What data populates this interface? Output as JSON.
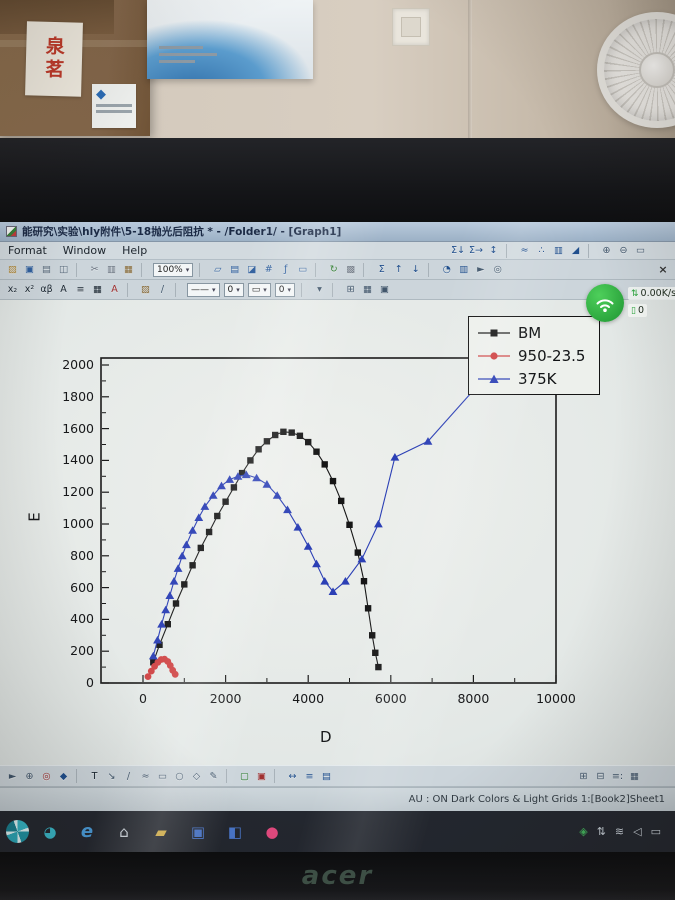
{
  "scene": {
    "box_label_text": "泉茗",
    "laptop_brand": "acer"
  },
  "window": {
    "title": "能研究\\实验\\hly附件\\5-18抛光后阻抗 * - /Folder1/ - [Graph1]",
    "menus": [
      "Format",
      "Window",
      "Help"
    ],
    "close_glyph": "×"
  },
  "net_widget": {
    "speed": "0.00K/s",
    "count": "0"
  },
  "statusbar": {
    "text": "AU : ON   Dark Colors & Light Grids   1:[Book2]Sheet1"
  },
  "toolbars": {
    "menu_row_icons": [
      {
        "type": "btn",
        "name": "stats-column-icon",
        "glyph": "Σ↓",
        "color": "#1f4e8c"
      },
      {
        "type": "btn",
        "name": "stats-row-icon",
        "glyph": "Σ→",
        "color": "#1f4e8c"
      },
      {
        "type": "btn",
        "name": "sort-icon",
        "glyph": "↕",
        "color": "#1f4e8c"
      },
      {
        "type": "sep"
      },
      {
        "type": "btn",
        "name": "line-plot-icon",
        "glyph": "≈",
        "color": "#1f4e8c"
      },
      {
        "type": "btn",
        "name": "scatter-plot-icon",
        "glyph": "∴",
        "color": "#1f4e8c"
      },
      {
        "type": "btn",
        "name": "column-plot-icon",
        "glyph": "▥",
        "color": "#1f4e8c"
      },
      {
        "type": "btn",
        "name": "area-plot-icon",
        "glyph": "◢",
        "color": "#1f4e8c"
      },
      {
        "type": "sep"
      },
      {
        "type": "btn",
        "name": "zoom-in-icon",
        "glyph": "⊕",
        "color": "#41566b"
      },
      {
        "type": "btn",
        "name": "zoom-out-icon",
        "glyph": "⊖",
        "color": "#41566b"
      },
      {
        "type": "btn",
        "name": "full-page-icon",
        "glyph": "▭",
        "color": "#41566b"
      }
    ],
    "row1": [
      {
        "type": "btn",
        "name": "open-project-icon",
        "glyph": "▨",
        "color": "#b08a3e"
      },
      {
        "type": "btn",
        "name": "save-project-icon",
        "glyph": "▣",
        "color": "#2f5f9e"
      },
      {
        "type": "btn",
        "name": "print-icon",
        "glyph": "▤",
        "color": "#5a6b7c"
      },
      {
        "type": "btn",
        "name": "print-preview-icon",
        "glyph": "◫",
        "color": "#5a6b7c"
      },
      {
        "type": "sep"
      },
      {
        "type": "btn",
        "name": "cut-icon",
        "glyph": "✂",
        "color": "#6b7480"
      },
      {
        "type": "btn",
        "name": "copy-icon",
        "glyph": "▥",
        "color": "#6b7480"
      },
      {
        "type": "btn",
        "name": "paste-icon",
        "glyph": "▦",
        "color": "#8a6d3b"
      },
      {
        "type": "sep"
      },
      {
        "type": "dd",
        "name": "zoom-dropdown",
        "value": "100%"
      },
      {
        "type": "sep"
      },
      {
        "type": "btn",
        "name": "new-project-icon",
        "glyph": "▱",
        "color": "#2f5f9e"
      },
      {
        "type": "btn",
        "name": "new-worksheet-icon",
        "glyph": "▤",
        "color": "#2f5f9e"
      },
      {
        "type": "btn",
        "name": "new-graph-icon",
        "glyph": "◪",
        "color": "#2f5f9e"
      },
      {
        "type": "btn",
        "name": "new-matrix-icon",
        "glyph": "#",
        "color": "#2f5f9e"
      },
      {
        "type": "btn",
        "name": "new-function-icon",
        "glyph": "ƒ",
        "color": "#2f5f9e"
      },
      {
        "type": "btn",
        "name": "new-layout-icon",
        "glyph": "▭",
        "color": "#2f5f9e"
      },
      {
        "type": "sep"
      },
      {
        "type": "btn",
        "name": "refresh-icon",
        "glyph": "↻",
        "color": "#2a7a2a"
      },
      {
        "type": "btn",
        "name": "duplicate-icon",
        "glyph": "▩",
        "color": "#6b7480"
      },
      {
        "type": "sep"
      },
      {
        "type": "btn",
        "name": "sum-icon",
        "glyph": "Σ",
        "color": "#1f4e8c"
      },
      {
        "type": "btn",
        "name": "sort-ascending-icon",
        "glyph": "↑",
        "color": "#1f4e8c"
      },
      {
        "type": "btn",
        "name": "sort-descending-icon",
        "glyph": "↓",
        "color": "#1f4e8c"
      },
      {
        "type": "sep"
      },
      {
        "type": "btn",
        "name": "pie-chart-icon",
        "glyph": "◔",
        "color": "#1f4e8c"
      },
      {
        "type": "btn",
        "name": "bar-chart-icon",
        "glyph": "▥",
        "color": "#1f4e8c"
      },
      {
        "type": "btn",
        "name": "pointer-icon",
        "glyph": "►",
        "color": "#41566b"
      },
      {
        "type": "btn",
        "name": "magnifier-icon",
        "glyph": "◎",
        "color": "#41566b"
      }
    ],
    "row2": [
      {
        "type": "btn",
        "name": "subscript-button",
        "glyph": "x₂",
        "color": "#1c2833"
      },
      {
        "type": "btn",
        "name": "superscript-button",
        "glyph": "x²",
        "color": "#1c2833"
      },
      {
        "type": "btn",
        "name": "greek-button",
        "glyph": "αβ",
        "color": "#1c2833"
      },
      {
        "type": "btn",
        "name": "bold-button",
        "glyph": "A",
        "color": "#1c2833"
      },
      {
        "type": "btn",
        "name": "align-button",
        "glyph": "≡",
        "color": "#1c2833"
      },
      {
        "type": "btn",
        "name": "pattern-button",
        "glyph": "▦",
        "color": "#1c2833"
      },
      {
        "type": "btn",
        "name": "font-color-button",
        "glyph": "A",
        "color": "#a03030"
      },
      {
        "type": "sep"
      },
      {
        "type": "btn",
        "name": "fill-color-icon",
        "glyph": "▨",
        "color": "#8a6d3b"
      },
      {
        "type": "btn",
        "name": "draw-line-icon",
        "glyph": "/",
        "color": "#41566b"
      },
      {
        "type": "sep"
      },
      {
        "type": "dd",
        "name": "line-style-dropdown",
        "value": "——"
      },
      {
        "type": "dd",
        "name": "line-width-dropdown",
        "value": "0"
      },
      {
        "type": "dd",
        "name": "symbol-style-dropdown",
        "value": "▭"
      },
      {
        "type": "dd",
        "name": "symbol-size-dropdown",
        "value": "0"
      },
      {
        "type": "sep"
      },
      {
        "type": "btn",
        "name": "arrow-style-icon",
        "glyph": "▾",
        "color": "#41566b"
      },
      {
        "type": "sep"
      },
      {
        "type": "btn",
        "name": "grid-icon",
        "glyph": "⊞",
        "color": "#41566b"
      },
      {
        "type": "btn",
        "name": "worksheet-icon",
        "glyph": "▦",
        "color": "#41566b"
      },
      {
        "type": "btn",
        "name": "layer-icon",
        "glyph": "▣",
        "color": "#41566b"
      }
    ],
    "bottom": [
      {
        "type": "btn",
        "name": "pointer-tool-icon",
        "glyph": "►",
        "color": "#41566b"
      },
      {
        "type": "btn",
        "name": "zoom-tool-icon",
        "glyph": "⊕",
        "color": "#41566b"
      },
      {
        "type": "btn",
        "name": "data-reader-icon",
        "glyph": "◎",
        "color": "#a03030"
      },
      {
        "type": "btn",
        "name": "data-selector-icon",
        "glyph": "◆",
        "color": "#1f4e8c"
      },
      {
        "type": "sep"
      },
      {
        "type": "btn",
        "name": "text-tool-icon",
        "glyph": "T",
        "color": "#1c2833"
      },
      {
        "type": "btn",
        "name": "arrow-tool-icon",
        "glyph": "↘",
        "color": "#41566b"
      },
      {
        "type": "btn",
        "name": "line-tool-icon",
        "glyph": "/",
        "color": "#41566b"
      },
      {
        "type": "btn",
        "name": "curve-tool-icon",
        "glyph": "≈",
        "color": "#41566b"
      },
      {
        "type": "btn",
        "name": "rectangle-tool-icon",
        "glyph": "▭",
        "color": "#41566b"
      },
      {
        "type": "btn",
        "name": "circle-tool-icon",
        "glyph": "○",
        "color": "#41566b"
      },
      {
        "type": "btn",
        "name": "polygon-tool-icon",
        "glyph": "◇",
        "color": "#41566b"
      },
      {
        "type": "btn",
        "name": "freehand-tool-icon",
        "glyph": "✎",
        "color": "#41566b"
      },
      {
        "type": "sep"
      },
      {
        "type": "btn",
        "name": "mask-tool-icon",
        "glyph": "▢",
        "color": "#2a7a2a"
      },
      {
        "type": "btn",
        "name": "unmask-tool-icon",
        "glyph": "▣",
        "color": "#a03030"
      },
      {
        "type": "sep"
      },
      {
        "type": "btn",
        "name": "rescale-tool-icon",
        "glyph": "↔",
        "color": "#1f4e8c"
      },
      {
        "type": "btn",
        "name": "legend-tool-icon",
        "glyph": "≡",
        "color": "#1f4e8c"
      },
      {
        "type": "btn",
        "name": "date-stamp-icon",
        "glyph": "▤",
        "color": "#1f4e8c"
      }
    ],
    "bottom_right": [
      {
        "type": "btn",
        "name": "add-layer-icon",
        "glyph": "⊞",
        "color": "#41566b"
      },
      {
        "type": "btn",
        "name": "remove-layer-icon",
        "glyph": "⊟",
        "color": "#41566b"
      },
      {
        "type": "btn",
        "name": "layer-contents-icon",
        "glyph": "≡:",
        "color": "#41566b"
      },
      {
        "type": "btn",
        "name": "layer-arrange-icon",
        "glyph": "▦",
        "color": "#41566b"
      }
    ]
  },
  "taskbar": {
    "apps": [
      {
        "name": "taskbar-app-browser360",
        "glyph": "◕",
        "color": "#39b7c8"
      },
      {
        "name": "taskbar-app-ie",
        "glyph": "e",
        "color": "#4a9bd8",
        "italic": true
      },
      {
        "name": "taskbar-app-home",
        "glyph": "⌂",
        "color": "#cdd5dc"
      },
      {
        "name": "taskbar-app-explorer",
        "glyph": "▰",
        "color": "#d9b44a"
      },
      {
        "name": "taskbar-app-word",
        "glyph": "▣",
        "color": "#4a76c9"
      },
      {
        "name": "taskbar-app-notes",
        "glyph": "◧",
        "color": "#4a76c9"
      },
      {
        "name": "taskbar-app-pink",
        "glyph": "●",
        "color": "#e2497e"
      }
    ],
    "tray": [
      {
        "name": "tray-security-icon",
        "glyph": "◈",
        "color": "#43b05c"
      },
      {
        "name": "tray-network-icon",
        "glyph": "⇅",
        "color": "#c8d0d8"
      },
      {
        "name": "tray-wifi-icon",
        "glyph": "≋",
        "color": "#c8d0d8"
      },
      {
        "name": "tray-volume-icon",
        "glyph": "◁",
        "color": "#c8d0d8"
      },
      {
        "name": "tray-battery-icon",
        "glyph": "▭",
        "color": "#c8d0d8"
      }
    ]
  },
  "chart_data": {
    "type": "scatter",
    "title": "",
    "xlabel": "D",
    "ylabel": "E",
    "xlim": [
      0,
      10000
    ],
    "ylim": [
      0,
      2000
    ],
    "x_ticks": [
      0,
      2000,
      4000,
      6000,
      8000,
      10000
    ],
    "y_ticks": [
      0,
      200,
      400,
      600,
      800,
      1000,
      1200,
      1400,
      1600,
      1800,
      2000
    ],
    "grid": false,
    "legend_position": "top-right",
    "legend": [
      "BM",
      "950-23.5",
      "375K"
    ],
    "series": [
      {
        "name": "BM",
        "marker": "square",
        "color": "#161616",
        "x": [
          250,
          400,
          600,
          800,
          1000,
          1200,
          1400,
          1600,
          1800,
          2000,
          2200,
          2400,
          2600,
          2800,
          3000,
          3200,
          3400,
          3600,
          3800,
          4000,
          4200,
          4400,
          4600,
          4800,
          5000,
          5200,
          5350,
          5450,
          5550,
          5625,
          5700
        ],
        "y": [
          130,
          240,
          370,
          500,
          620,
          740,
          850,
          950,
          1050,
          1140,
          1230,
          1320,
          1400,
          1470,
          1520,
          1560,
          1580,
          1575,
          1555,
          1515,
          1455,
          1375,
          1270,
          1145,
          995,
          820,
          640,
          470,
          300,
          190,
          100
        ]
      },
      {
        "name": "950-23.5",
        "marker": "circle",
        "color": "#cf4343",
        "x": [
          120,
          200,
          280,
          360,
          440,
          520,
          600,
          660,
          720,
          780
        ],
        "y": [
          40,
          75,
          105,
          130,
          148,
          150,
          135,
          110,
          80,
          55
        ]
      },
      {
        "name": "375K",
        "marker": "triangle",
        "color": "#2b3fb5",
        "x": [
          250,
          350,
          450,
          550,
          650,
          750,
          850,
          950,
          1050,
          1200,
          1350,
          1500,
          1700,
          1900,
          2100,
          2300,
          2500,
          2750,
          3000,
          3250,
          3500,
          3750,
          4000,
          4200,
          4400,
          4600,
          4900,
          5300,
          5700,
          6100,
          6900,
          8000
        ],
        "y": [
          170,
          270,
          370,
          460,
          550,
          640,
          720,
          800,
          870,
          960,
          1040,
          1110,
          1180,
          1240,
          1280,
          1300,
          1310,
          1290,
          1250,
          1180,
          1090,
          980,
          860,
          750,
          640,
          575,
          640,
          780,
          1000,
          1420,
          1520,
          1840
        ]
      }
    ]
  }
}
